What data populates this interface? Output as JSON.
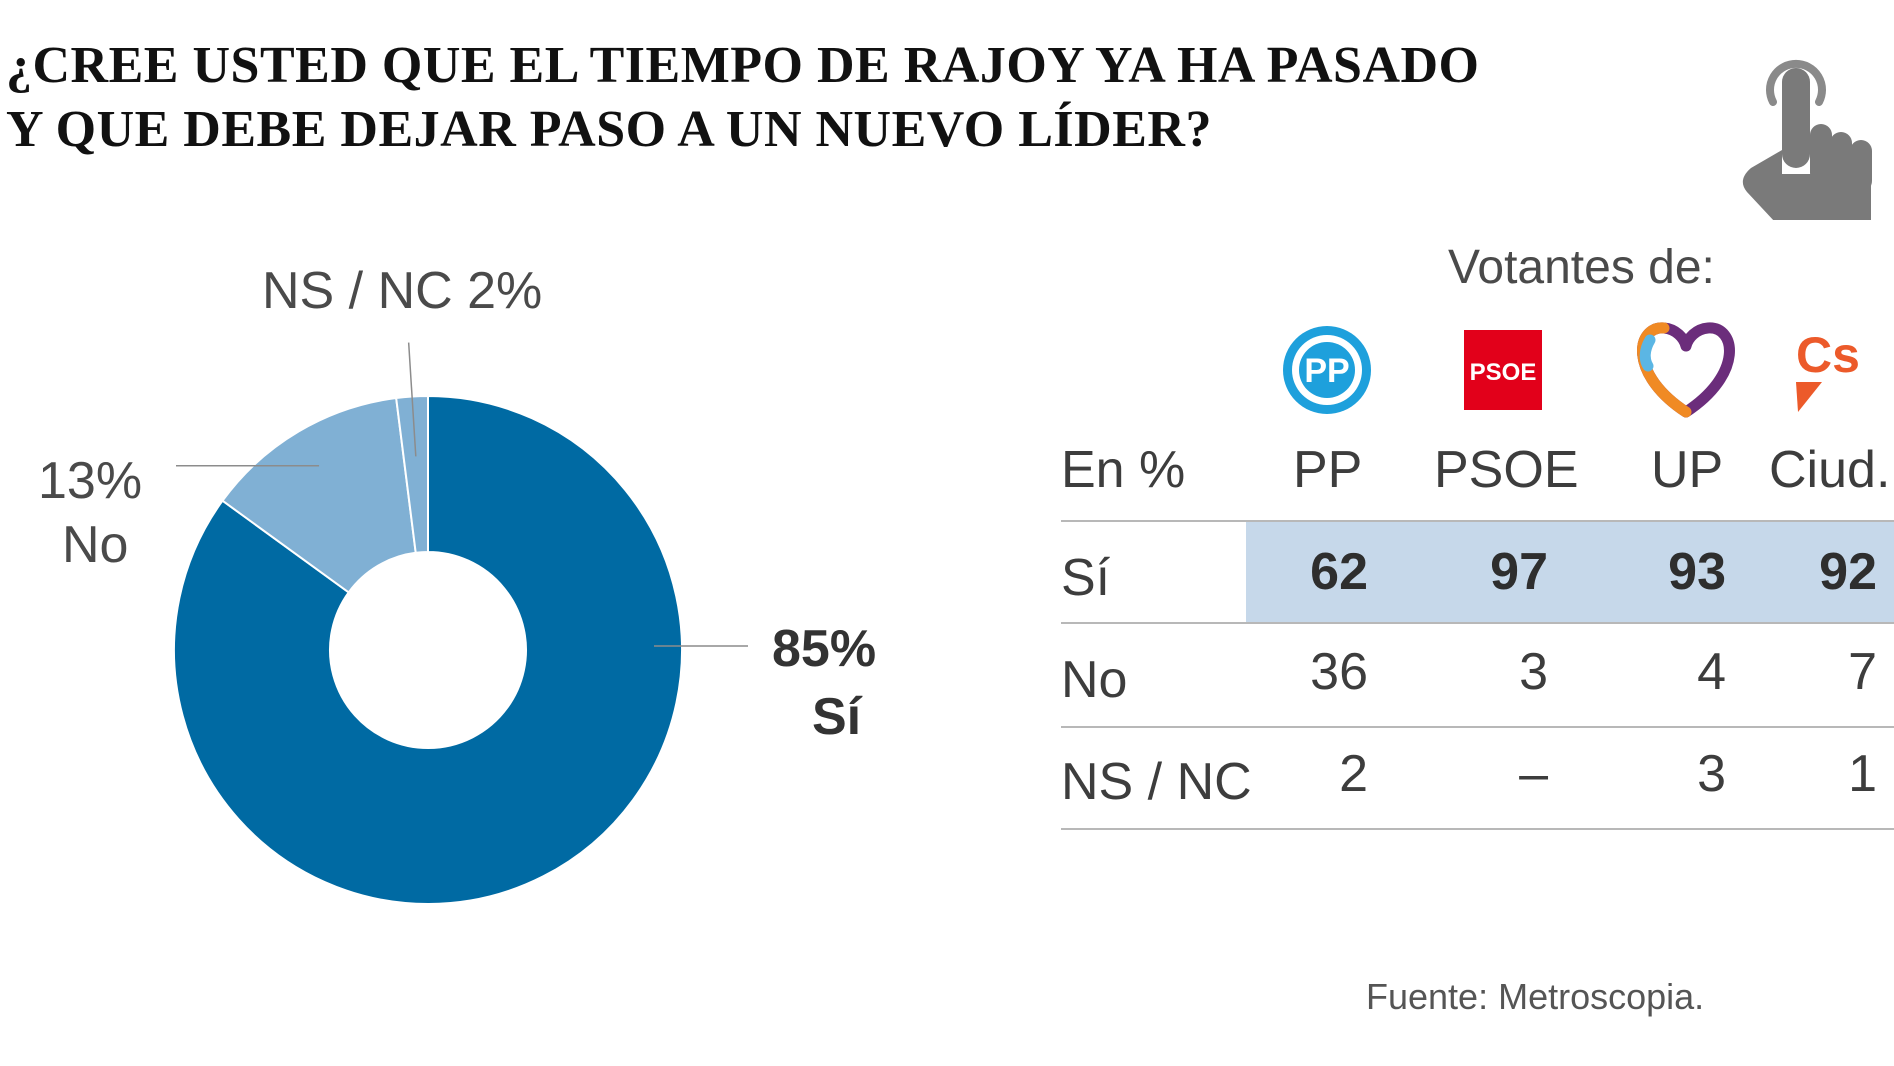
{
  "title": {
    "line1": "¿CREE USTED QUE EL TIEMPO DE RAJOY YA HA PASADO",
    "line2": "Y QUE DEBE DEJAR PASO A UN NUEVO LÍDER?"
  },
  "icons": {
    "corner": "touch-hand-icon",
    "parties": [
      "pp-logo",
      "psoe-logo",
      "up-heart-logo",
      "cs-logo"
    ]
  },
  "chart_data": [
    {
      "type": "pie",
      "title": "¿CREE USTED QUE EL TIEMPO DE RAJOY YA HA PASADO Y QUE DEBE DEJAR PASO A UN NUEVO LÍDER?",
      "unit": "%",
      "slices": [
        {
          "label": "Sí",
          "value": 85,
          "value_text": "85%",
          "color": "#006aa3"
        },
        {
          "label": "No",
          "value": 13,
          "value_text": "13%",
          "color": "#80b0d4"
        },
        {
          "label": "NS / NC",
          "value": 2,
          "value_text": "2%",
          "color": "#80b0d4"
        }
      ],
      "labels": {
        "ns_nc": "NS / NC 2%",
        "no_pct": "13%",
        "no_label": "No",
        "si_pct": "85%",
        "si_label": "Sí"
      }
    },
    {
      "type": "table",
      "group_header": "Votantes de:",
      "corner_header": "En %",
      "columns": [
        "PP",
        "PSOE",
        "UP",
        "Ciud."
      ],
      "rows": [
        {
          "label": "Sí",
          "values": [
            "62",
            "97",
            "93",
            "92"
          ],
          "highlight": true
        },
        {
          "label": "No",
          "values": [
            "36",
            "3",
            "4",
            "7"
          ]
        },
        {
          "label": "NS / NC",
          "values": [
            "2",
            "–",
            "3",
            "1"
          ]
        }
      ]
    }
  ],
  "colors": {
    "si": "#006aa3",
    "no": "#80b0d4",
    "highlight": "#c6d8ea",
    "pp": "#1ea0dc",
    "psoe": "#e2001a",
    "up": "#6b2d7b",
    "cs": "#ec5a2a"
  },
  "source": "Fuente: Metroscopia."
}
